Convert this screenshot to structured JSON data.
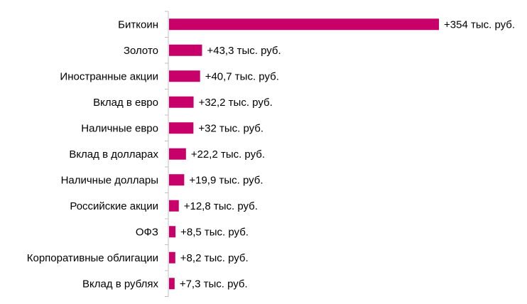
{
  "chart_data": {
    "type": "bar",
    "orientation": "horizontal",
    "categories": [
      "Биткоин",
      "Золото",
      "Иностранные акции",
      "Вклад в евро",
      "Наличные евро",
      "Вклад в долларах",
      "Наличные доллары",
      "Российские акции",
      "ОФЗ",
      "Корпоративные облигации",
      "Вклад в рублях"
    ],
    "values": [
      354,
      43.3,
      40.7,
      32.2,
      32,
      22.2,
      19.9,
      12.8,
      8.5,
      8.2,
      7.3
    ],
    "data_labels": [
      "+354 тыс. руб.",
      "+43,3 тыс. руб.",
      "+40,7 тыс. руб.",
      "+32,2 тыс. руб.",
      "+32 тыс. руб.",
      "+22,2 тыс. руб.",
      "+19,9 тыс. руб.",
      "+12,8 тыс. руб.",
      "+8,5 тыс. руб.",
      "+8,2 тыс. руб.",
      "+7,3 тыс. руб."
    ],
    "xlim": [
      0,
      354
    ],
    "grid": false,
    "legend": "none",
    "bar_color": "#C8006A",
    "axis_color": "#BFBFBF"
  }
}
